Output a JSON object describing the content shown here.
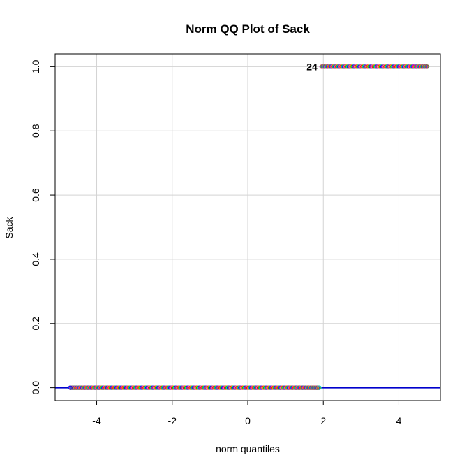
{
  "chart_data": {
    "type": "scatter",
    "title": "Norm QQ Plot of Sack",
    "xlabel": "norm quantiles",
    "ylabel": "Sack",
    "xlim": [
      -5.1,
      5.1
    ],
    "ylim": [
      -0.04,
      1.04
    ],
    "xticks": [
      -4,
      -2,
      0,
      2,
      4
    ],
    "xtick_labels": [
      "-4",
      "-2",
      "0",
      "2",
      "4"
    ],
    "yticks": [
      0.0,
      0.2,
      0.4,
      0.6,
      0.8,
      1.0
    ],
    "ytick_labels": [
      "0.0",
      "0.2",
      "0.4",
      "0.6",
      "0.8",
      "1.0"
    ],
    "grid": true,
    "reference_line": {
      "y": 0,
      "color": "#0000cc"
    },
    "point_colors": [
      "#ff0000",
      "#ff9900",
      "#00cc00",
      "#00cccc",
      "#0000ff",
      "#cc00cc",
      "#996633",
      "#ff66cc"
    ],
    "series": [
      {
        "y": 0,
        "x_range": [
          -4.7,
          1.9
        ],
        "n": 460,
        "outliers": [
          -4.7
        ]
      },
      {
        "y": 1,
        "x_range": [
          1.95,
          4.75
        ],
        "n": 200,
        "outliers": [
          4.4,
          4.75
        ]
      }
    ],
    "annotations": [
      {
        "text": "24",
        "x": 1.7,
        "y": 1.0
      }
    ]
  }
}
